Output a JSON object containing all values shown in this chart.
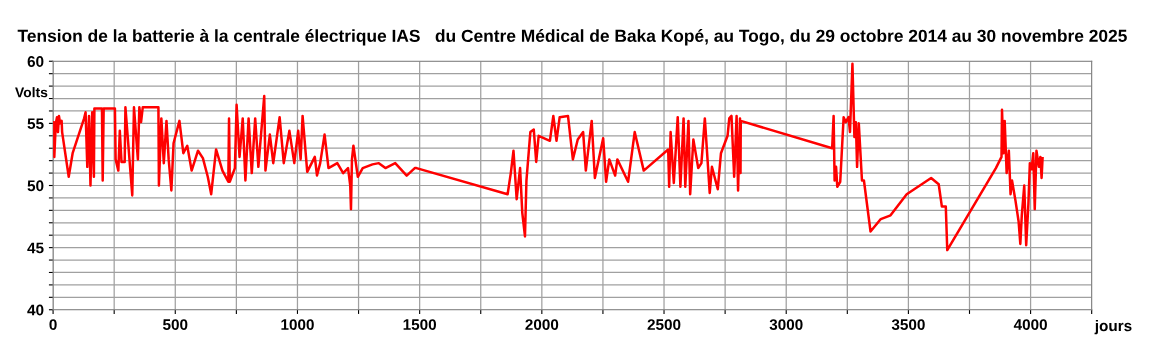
{
  "chart_data": {
    "type": "line",
    "title": "Tension de la batterie à la centrale électrique IAS   du Centre Médical de Baka Kopé, au Togo, du 29 octobre 2014 au 30 novembre 2025",
    "xlabel": "jours",
    "ylabel": "Volts",
    "xlim": [
      0,
      4250
    ],
    "ylim": [
      40,
      60
    ],
    "xticks": [
      0,
      {
        "value": 250,
        "label": null
      },
      500,
      {
        "value": 750,
        "label": null
      },
      1000,
      {
        "value": 1250,
        "label": null
      },
      1500,
      {
        "value": 1750,
        "label": null
      },
      2000,
      {
        "value": 2250,
        "label": null
      },
      2500,
      {
        "value": 2750,
        "label": null
      },
      3000,
      {
        "value": 3250,
        "label": null
      },
      3500,
      {
        "value": 3750,
        "label": null
      },
      4000,
      {
        "value": 4250,
        "label": null
      }
    ],
    "yticks": [
      40,
      {
        "value": 41,
        "label": null
      },
      {
        "value": 42,
        "label": null
      },
      {
        "value": 43,
        "label": null
      },
      {
        "value": 44,
        "label": null
      },
      45,
      {
        "value": 46,
        "label": null
      },
      {
        "value": 47,
        "label": null
      },
      {
        "value": 48,
        "label": null
      },
      {
        "value": 49,
        "label": null
      },
      50,
      {
        "value": 51,
        "label": null
      },
      {
        "value": 52,
        "label": null
      },
      {
        "value": 53,
        "label": null
      },
      {
        "value": 54,
        "label": null
      },
      55,
      {
        "value": 56,
        "label": null
      },
      {
        "value": 57,
        "label": null
      },
      {
        "value": 58,
        "label": null
      },
      {
        "value": 59,
        "label": null
      },
      60
    ],
    "grid": true,
    "marker": "none",
    "line_style": "solid",
    "series": [
      {
        "color": "#ff0000",
        "x": [
          0,
          3,
          5,
          11,
          16,
          20,
          24,
          29,
          35,
          37,
          64,
          80,
          127,
          133,
          140,
          147,
          153,
          160,
          167,
          169,
          200,
          203,
          207,
          253,
          256,
          267,
          273,
          280,
          293,
          296,
          324,
          331,
          347,
          353,
          360,
          367,
          431,
          433,
          443,
          453,
          464,
          473,
          484,
          493,
          517,
          533,
          549,
          567,
          593,
          613,
          633,
          647,
          667,
          693,
          717,
          720,
          723,
          744,
          751,
          763,
          776,
          787,
          800,
          813,
          827,
          840,
          864,
          869,
          887,
          901,
          927,
          944,
          967,
          987,
          1003,
          1013,
          1021,
          1040,
          1071,
          1080,
          1093,
          1111,
          1127,
          1163,
          1187,
          1207,
          1216,
          1219,
          1223,
          1229,
          1247,
          1267,
          1307,
          1333,
          1360,
          1400,
          1447,
          1480,
          1487,
          1860,
          1873,
          1884,
          1897,
          1911,
          1920,
          1931,
          1937,
          1953,
          1967,
          1977,
          1987,
          2033,
          2047,
          2060,
          2073,
          2107,
          2127,
          2147,
          2169,
          2180,
          2204,
          2217,
          2251,
          2263,
          2276,
          2300,
          2309,
          2353,
          2380,
          2417,
          2517,
          2521,
          2527,
          2540,
          2556,
          2567,
          2580,
          2587,
          2600,
          2607,
          2620,
          2640,
          2653,
          2667,
          2687,
          2696,
          2720,
          2733,
          2760,
          2767,
          2776,
          2787,
          2797,
          2803,
          2811,
          2813,
          2814,
          3188,
          3194,
          3198,
          3204,
          3209,
          3221,
          3235,
          3244,
          3255,
          3261,
          3271,
          3279,
          3285,
          3290,
          3297,
          3310,
          3318,
          3345,
          3387,
          3427,
          3493,
          3593,
          3624,
          3637,
          3653,
          3659,
          3858,
          3881,
          3883,
          3889,
          3894,
          3902,
          3911,
          3918,
          3924,
          3938,
          3951,
          3958,
          3964,
          3974,
          3982,
          3991,
          3997,
          4004,
          4011,
          4017,
          4024,
          4034,
          4040,
          4045,
          4049
        ],
        "values": [
          52.9,
          55.1,
          52.3,
          55,
          55.5,
          54.3,
          55.6,
          55,
          55.2,
          54.3,
          50.7,
          52.6,
          55.4,
          55.9,
          51.5,
          55.6,
          50,
          55.9,
          50.7,
          56.2,
          56.2,
          50.4,
          56.2,
          56.2,
          52.1,
          51.2,
          54.4,
          51.9,
          51.9,
          56.3,
          49.2,
          56.3,
          52.1,
          56.3,
          55.1,
          56.3,
          56.3,
          50,
          55.4,
          51.8,
          55.2,
          52.1,
          49.6,
          53.4,
          55.2,
          52.6,
          53.2,
          51.2,
          52.8,
          52.2,
          50.7,
          49.3,
          52.9,
          51.2,
          50.3,
          55.4,
          50.3,
          51.4,
          56.5,
          52.3,
          55.4,
          50.4,
          55.4,
          51,
          55.4,
          51.5,
          57.2,
          51.2,
          54.1,
          51.8,
          55.5,
          51.8,
          54.4,
          51.8,
          54.4,
          52.1,
          55.6,
          51.1,
          52.3,
          50.8,
          51.8,
          54.1,
          51.4,
          51.8,
          51,
          51.4,
          50,
          48.1,
          52.1,
          53.2,
          50.7,
          51.4,
          51.7,
          51.8,
          51.4,
          51.8,
          50.8,
          51.4,
          51.4,
          49.3,
          51,
          52.8,
          48.9,
          51.4,
          47.8,
          45.9,
          50.4,
          54.3,
          54.5,
          51.9,
          54,
          53.6,
          55.6,
          53.6,
          55.5,
          55.6,
          52.1,
          53.7,
          54.3,
          51.2,
          55.2,
          50.6,
          53.8,
          50.3,
          52.1,
          50.8,
          52.1,
          50.3,
          54.3,
          51.2,
          52.9,
          49.9,
          54.3,
          50.2,
          55.5,
          49.9,
          55.4,
          49.9,
          55.2,
          49.3,
          53.7,
          51.4,
          51.8,
          55.4,
          49.4,
          51.5,
          49.7,
          52.6,
          54,
          55.4,
          55.6,
          50.7,
          55.6,
          49.6,
          55.4,
          51,
          55.2,
          53,
          55.6,
          50.4,
          51.5,
          49.9,
          50.3,
          55.5,
          55.1,
          55.5,
          54.3,
          59.8,
          53.9,
          55.1,
          51.5,
          55,
          50.4,
          50.4,
          46.3,
          47.3,
          47.6,
          49.3,
          50.6,
          50.1,
          48.3,
          48.3,
          44.8,
          51.4,
          52.3,
          56.1,
          52.6,
          55.2,
          51,
          52.8,
          49.3,
          50.4,
          48.8,
          47.1,
          45.3,
          47.6,
          50,
          45.2,
          48.5,
          51.8,
          51.3,
          52.6,
          48.1,
          52.8,
          51.5,
          52.3,
          50.6,
          52.2
        ]
      }
    ]
  }
}
